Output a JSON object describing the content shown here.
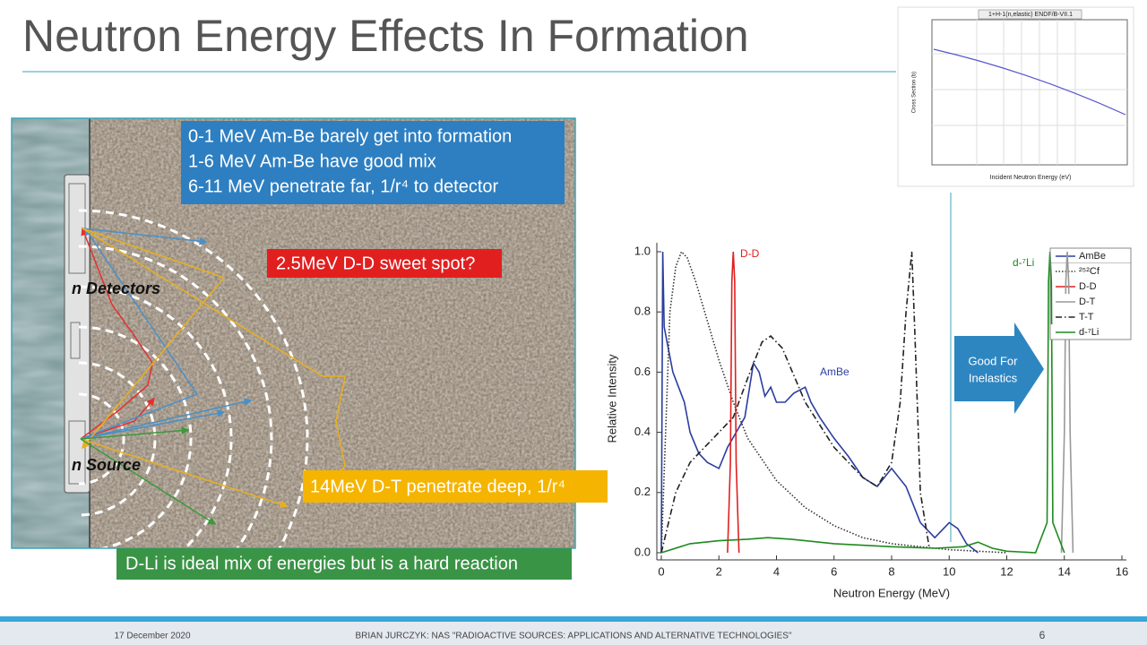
{
  "title": "Neutron Energy Effects In Formation",
  "bullets": [
    "0-1 MeV Am-Be barely get into formation",
    "1-6 MeV Am-Be have good mix",
    "6-11 MeV penetrate far, 1/r⁴ to detector"
  ],
  "callouts": {
    "dd": "2.5MeV D-D sweet spot?",
    "dt": "14MeV D-T penetrate deep, 1/r⁴",
    "dli": "D-Li is ideal mix of energies but is a hard reaction"
  },
  "labels": {
    "detectors": "n Detectors",
    "source": "n Source"
  },
  "inset": {
    "title": "1+H-1(n,elastic) ENDF/B-VII.1",
    "ylabel": "Cross Section (b)",
    "xlabel": "Incident Neutron Energy (eV)"
  },
  "arrow_note": [
    "Good For",
    "Inelastics"
  ],
  "chart_data": {
    "type": "line",
    "xlabel": "Neutron Energy (MeV)",
    "ylabel": "Relative Intensity",
    "xlim": [
      0,
      16
    ],
    "xticks": [
      0,
      2,
      4,
      6,
      8,
      10,
      12,
      14,
      16
    ],
    "ylim": [
      0,
      1
    ],
    "yticks": [
      {
        "value": 0,
        "label": "0.0"
      },
      0.2,
      0.4,
      0.6,
      0.8,
      {
        "value": 1,
        "label": "1.0"
      }
    ],
    "annotations": [
      "D-D",
      "AmBe",
      "d-⁷Li"
    ],
    "series": [
      {
        "name": "AmBe",
        "color": "#2b3ea0",
        "style": "solid",
        "x": [
          0,
          0.05,
          0.1,
          0.2,
          0.4,
          0.6,
          0.8,
          1.0,
          1.3,
          1.6,
          2.0,
          2.3,
          2.6,
          2.9,
          3.2,
          3.4,
          3.6,
          3.8,
          4.0,
          4.3,
          4.6,
          5.0,
          5.2,
          5.5,
          6.0,
          6.5,
          7.0,
          7.5,
          8.0,
          8.5,
          9.0,
          9.5,
          10.0,
          10.3,
          10.6,
          11.0
        ],
        "values": [
          0,
          1.0,
          0.75,
          0.7,
          0.6,
          0.55,
          0.5,
          0.4,
          0.33,
          0.3,
          0.28,
          0.35,
          0.4,
          0.45,
          0.63,
          0.6,
          0.52,
          0.55,
          0.5,
          0.5,
          0.53,
          0.55,
          0.5,
          0.45,
          0.38,
          0.32,
          0.25,
          0.22,
          0.28,
          0.22,
          0.1,
          0.05,
          0.1,
          0.08,
          0.03,
          0
        ]
      },
      {
        "name": "²⁵²Cf",
        "color": "#333333",
        "style": "dotted",
        "x": [
          0,
          0.3,
          0.5,
          0.7,
          0.9,
          1.2,
          1.6,
          2,
          2.5,
          3,
          4,
          5,
          6,
          7,
          8,
          9,
          10,
          11,
          12
        ],
        "values": [
          0,
          0.8,
          0.95,
          1.0,
          0.98,
          0.9,
          0.77,
          0.64,
          0.5,
          0.38,
          0.24,
          0.15,
          0.09,
          0.05,
          0.03,
          0.02,
          0.01,
          0.005,
          0
        ]
      },
      {
        "name": "D-D",
        "color": "#e02020",
        "style": "solid",
        "x": [
          2.3,
          2.4,
          2.45,
          2.5,
          2.55,
          2.6,
          2.7
        ],
        "values": [
          0,
          0.3,
          0.9,
          1.0,
          0.9,
          0.3,
          0
        ]
      },
      {
        "name": "D-T",
        "color": "#999999",
        "style": "solid",
        "x": [
          13.9,
          14.0,
          14.05,
          14.1,
          14.15,
          14.2,
          14.3
        ],
        "values": [
          0,
          0.4,
          0.9,
          1.0,
          0.9,
          0.4,
          0
        ]
      },
      {
        "name": "T-T",
        "color": "#222222",
        "style": "dashdot",
        "x": [
          0,
          0.5,
          1,
          1.5,
          2,
          2.5,
          3,
          3.5,
          3.8,
          4.2,
          5,
          6,
          7,
          7.5,
          8,
          8.3,
          8.5,
          8.7,
          8.8,
          9,
          9.3
        ],
        "values": [
          0,
          0.2,
          0.3,
          0.35,
          0.4,
          0.45,
          0.58,
          0.7,
          0.72,
          0.68,
          0.5,
          0.35,
          0.25,
          0.22,
          0.3,
          0.5,
          0.8,
          1.0,
          0.75,
          0.2,
          0.02
        ]
      },
      {
        "name": "d-⁷Li",
        "color": "#1e8a1e",
        "style": "solid",
        "x": [
          0,
          1,
          2,
          3,
          3.7,
          4.5,
          6,
          8,
          9.5,
          10.5,
          11,
          11.5,
          12,
          13,
          13.4,
          13.45,
          13.5,
          13.55,
          13.6,
          14
        ],
        "values": [
          0,
          0.03,
          0.04,
          0.045,
          0.05,
          0.045,
          0.03,
          0.02,
          0.015,
          0.02,
          0.035,
          0.015,
          0.005,
          0,
          0.1,
          0.9,
          1.0,
          0.9,
          0.1,
          0
        ]
      }
    ]
  },
  "footer": {
    "date": "17 December 2020",
    "center": "BRIAN JURCZYK:  NAS \"RADIOACTIVE SOURCES: APPLICATIONS AND ALTERNATIVE TECHNOLOGIES\"",
    "page": "6"
  }
}
